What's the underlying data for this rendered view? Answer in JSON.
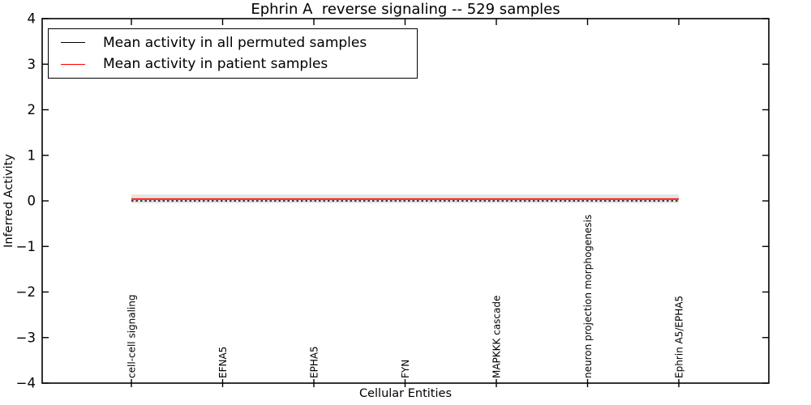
{
  "chart_data": {
    "type": "line",
    "title": "Ephrin A  reverse signaling -- 529 samples",
    "xlabel": "Cellular Entities",
    "ylabel": "Inferred Activity",
    "ylim": [
      -4,
      4
    ],
    "yticks": [
      4,
      3,
      2,
      1,
      0,
      -1,
      -2,
      -3,
      -4
    ],
    "ytick_labels": [
      "4",
      "3",
      "2",
      "1",
      "0",
      "−1",
      "−2",
      "−3",
      "−4"
    ],
    "categories": [
      "cell-cell signaling",
      "EFNA5",
      "EPHA5",
      "FYN",
      "MAPKKK cascade",
      "neuron projection morphogenesis",
      "Ephrin A5/EPHA5"
    ],
    "series": [
      {
        "name": "Mean activity in all permuted samples",
        "color": "#000000",
        "line_style": "dotted",
        "values": [
          0,
          0,
          0,
          0,
          0,
          0,
          0
        ]
      },
      {
        "name": "Mean activity in patient samples",
        "color": "#ff0000",
        "line_style": "solid",
        "values": [
          0.04,
          0.04,
          0.04,
          0.04,
          0.04,
          0.04,
          0.04
        ]
      }
    ],
    "band": {
      "upper": 0.14,
      "lower": -0.05,
      "color": "#e4e4e4"
    },
    "legend_position": "upper left",
    "grid": false,
    "axis_color": "#000000",
    "background": "#ffffff"
  }
}
